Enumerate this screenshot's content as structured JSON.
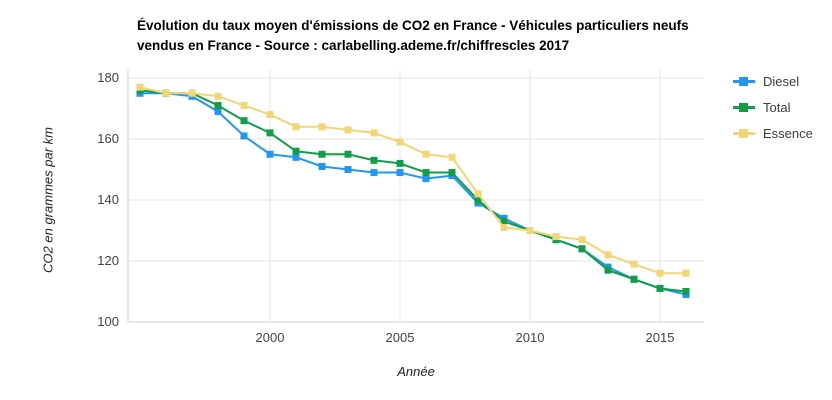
{
  "chart_data": {
    "type": "line",
    "title": "Évolution du taux moyen d'émissions de CO2 en France - Véhicules particuliers neufs vendus en France - Source : carlabelling.ademe.fr/chiffrescles 2017",
    "xlabel": "Année",
    "ylabel": "CO2 en grammes par km",
    "x": [
      1995,
      1996,
      1997,
      1998,
      1999,
      2000,
      2001,
      2002,
      2003,
      2004,
      2005,
      2006,
      2007,
      2008,
      2009,
      2010,
      2011,
      2012,
      2013,
      2014,
      2015,
      2016
    ],
    "series": [
      {
        "name": "Diesel",
        "color": "#2196f3",
        "values": [
          175,
          175,
          174,
          169,
          161,
          155,
          154,
          151,
          150,
          149,
          149,
          147,
          148,
          139,
          134,
          130,
          127,
          124,
          118,
          114,
          111,
          109
        ]
      },
      {
        "name": "Total",
        "color": "#109e49",
        "values": [
          176,
          175,
          175,
          171,
          166,
          162,
          156,
          155,
          155,
          153,
          152,
          149,
          149,
          140,
          133,
          130,
          127,
          124,
          117,
          114,
          111,
          110
        ]
      },
      {
        "name": "Essence",
        "color": "#f2d675",
        "values": [
          177,
          175,
          175,
          174,
          171,
          168,
          164,
          164,
          163,
          162,
          159,
          155,
          154,
          142,
          131,
          130,
          128,
          127,
          122,
          119,
          116,
          116
        ]
      }
    ],
    "ylim": [
      100,
      185
    ],
    "yticks": [
      100,
      120,
      140,
      160,
      180
    ],
    "xticks": [
      2000,
      2005,
      2010,
      2015
    ],
    "grid": true,
    "legend_position": "right-top",
    "colors": {
      "gridline": "#e6e6e6",
      "axis_line": "#cccccc",
      "tick_text": "#444444"
    }
  }
}
